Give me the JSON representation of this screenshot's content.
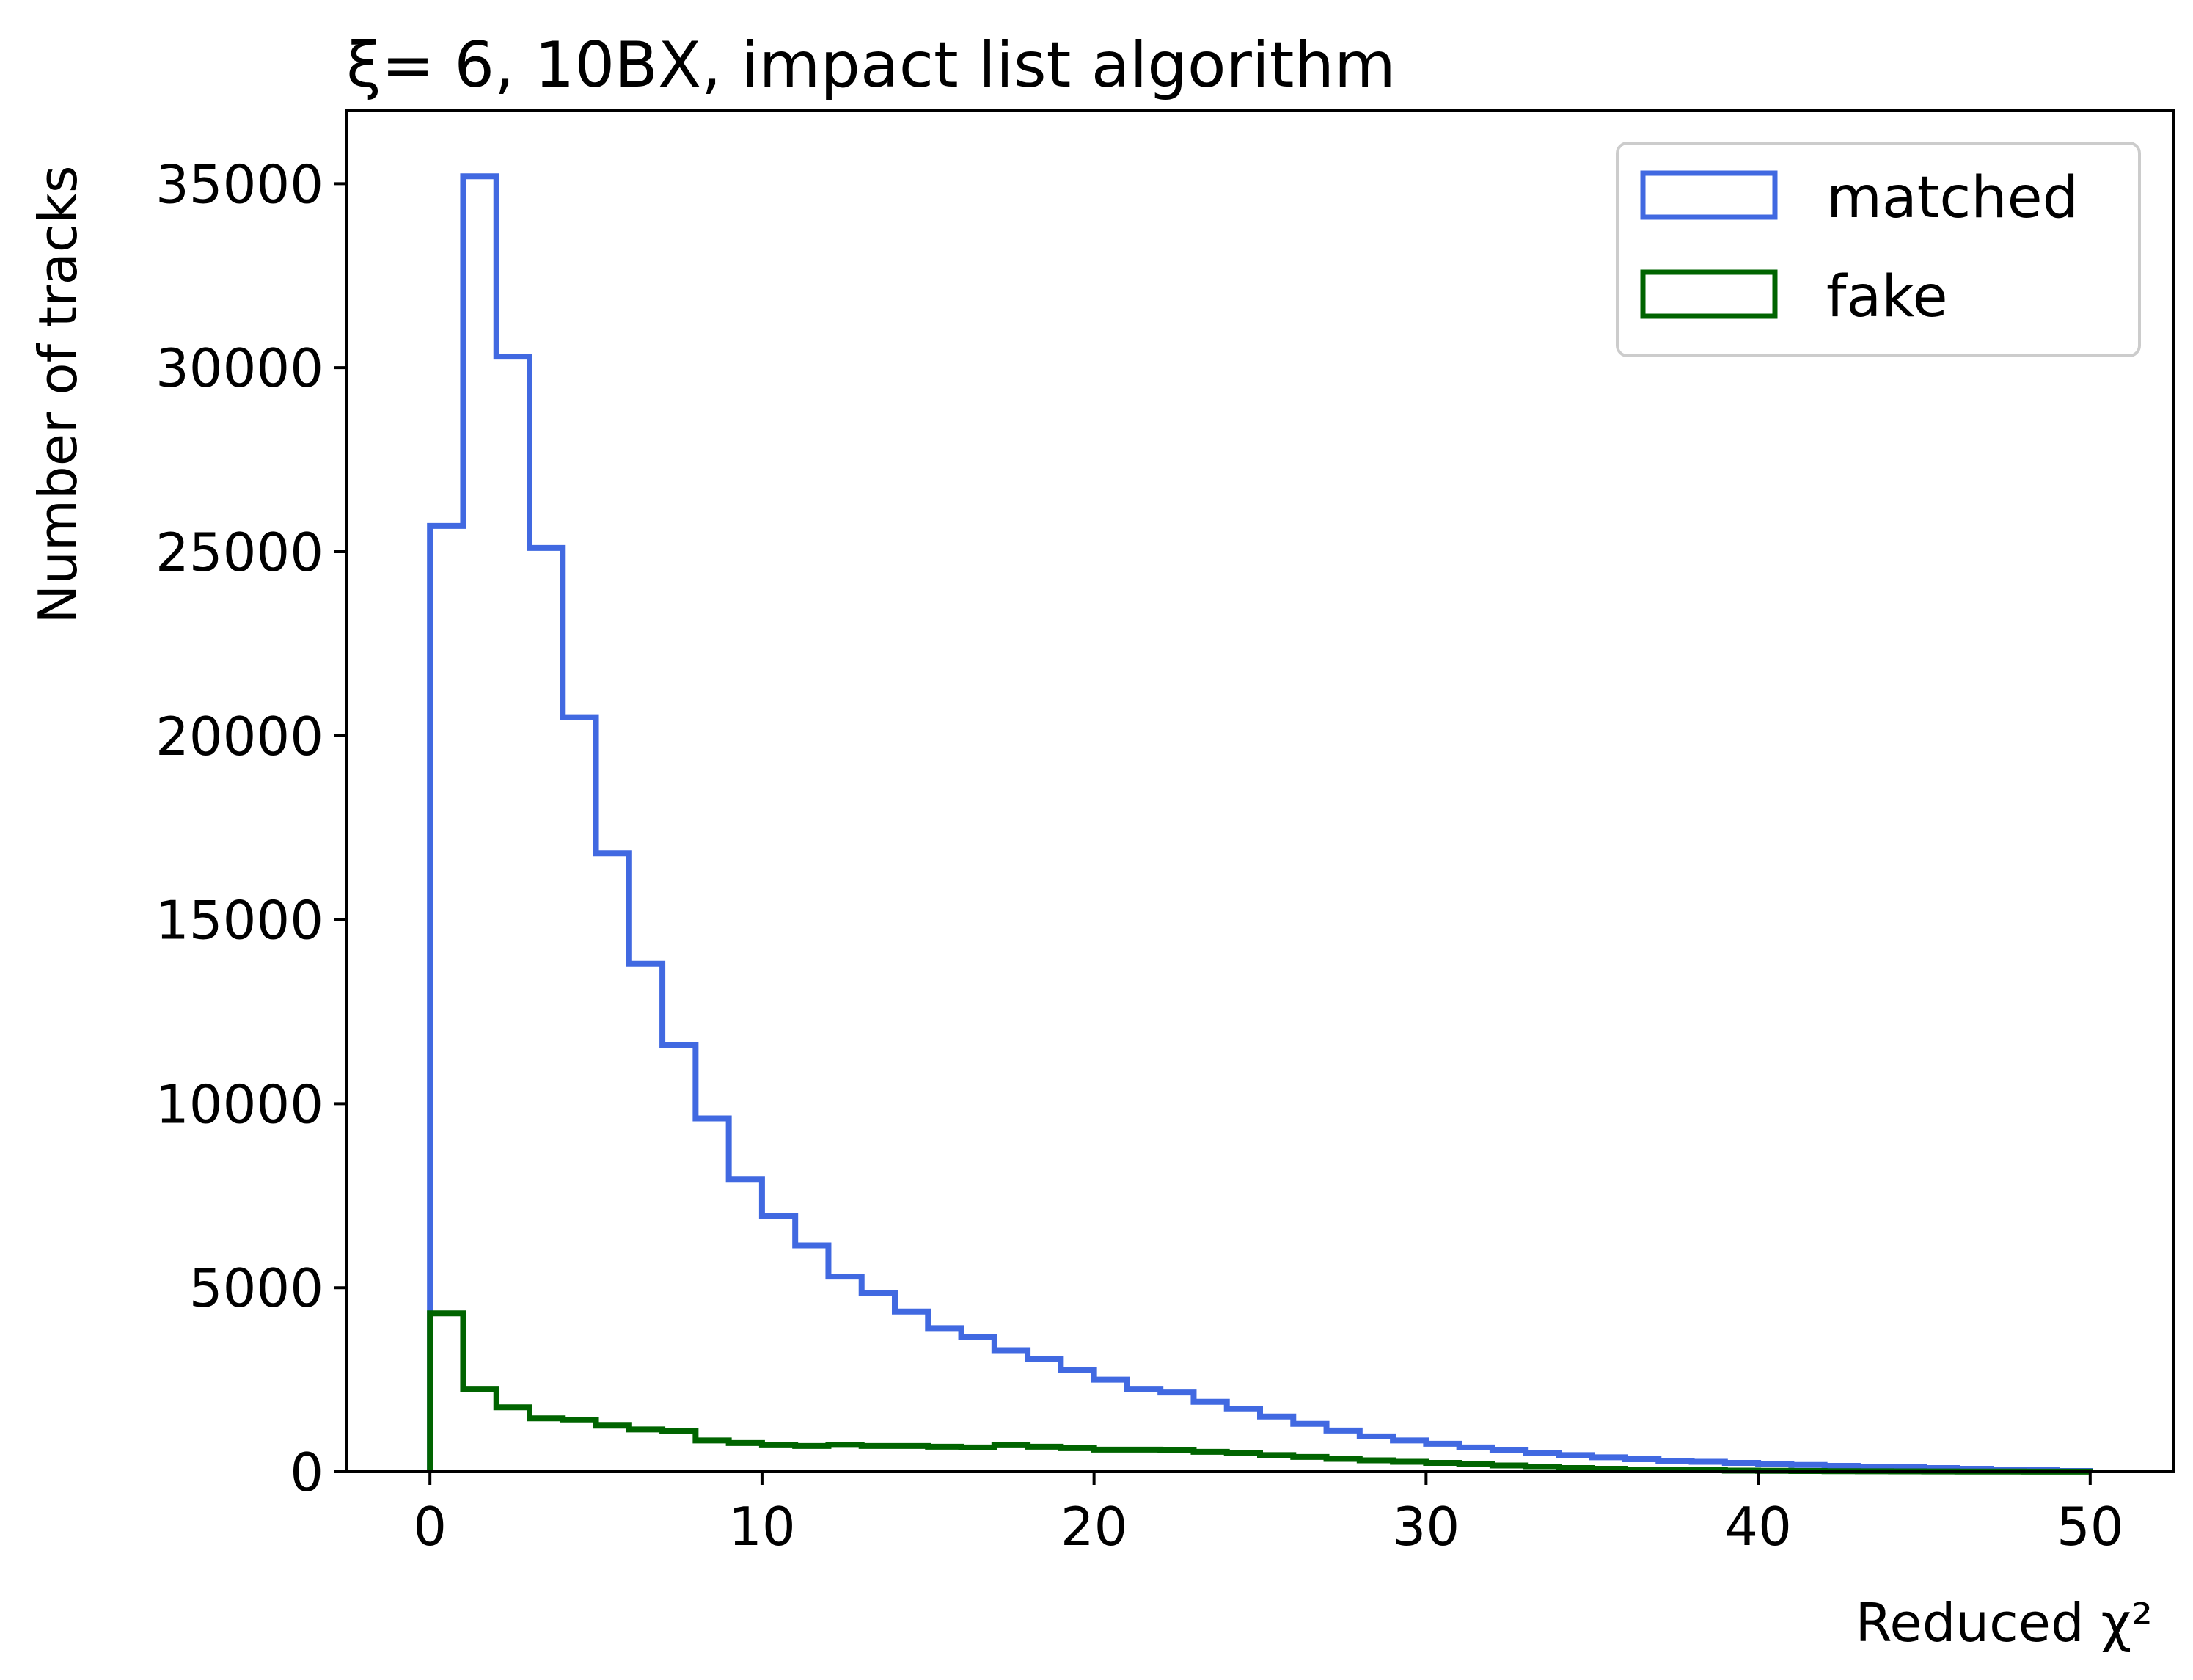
{
  "chart_data": {
    "type": "histogram",
    "title": "ξ= 6, 10BX, impact list algorithm",
    "xlabel": "Reduced χ²",
    "ylabel": "Number of tracks",
    "xlim": [
      -2.5,
      52.5
    ],
    "ylim": [
      0,
      37000
    ],
    "xticks": [
      0,
      10,
      20,
      30,
      40,
      50
    ],
    "yticks": [
      0,
      5000,
      10000,
      15000,
      20000,
      25000,
      30000,
      35000
    ],
    "grid": false,
    "legend_position": "top-right",
    "bin_edges": [
      0,
      1,
      2,
      3,
      4,
      5,
      6,
      7,
      8,
      9,
      10,
      11,
      12,
      13,
      14,
      15,
      16,
      17,
      18,
      19,
      20,
      21,
      22,
      23,
      24,
      25,
      26,
      27,
      28,
      29,
      30,
      31,
      32,
      33,
      34,
      35,
      36,
      37,
      38,
      39,
      40,
      41,
      42,
      43,
      44,
      45,
      46,
      47,
      48,
      49,
      50
    ],
    "series": [
      {
        "name": "matched",
        "color": "#4169e1",
        "values": [
          25700,
          35200,
          30300,
          25100,
          20500,
          16800,
          13800,
          11600,
          9600,
          7950,
          6950,
          6150,
          5300,
          4850,
          4350,
          3900,
          3650,
          3300,
          3050,
          2750,
          2500,
          2250,
          2150,
          1900,
          1700,
          1500,
          1300,
          1120,
          960,
          850,
          760,
          660,
          580,
          510,
          450,
          390,
          340,
          300,
          270,
          240,
          210,
          185,
          160,
          140,
          120,
          100,
          80,
          60,
          40,
          20
        ]
      },
      {
        "name": "fake",
        "color": "#006400",
        "values": [
          4300,
          2250,
          1750,
          1450,
          1400,
          1250,
          1150,
          1100,
          850,
          780,
          720,
          700,
          730,
          700,
          700,
          680,
          660,
          720,
          680,
          640,
          600,
          600,
          580,
          540,
          500,
          450,
          400,
          350,
          310,
          270,
          240,
          210,
          170,
          130,
          100,
          80,
          60,
          50,
          40,
          30,
          25,
          20,
          15,
          12,
          10,
          8,
          6,
          4,
          3,
          2
        ]
      }
    ]
  }
}
